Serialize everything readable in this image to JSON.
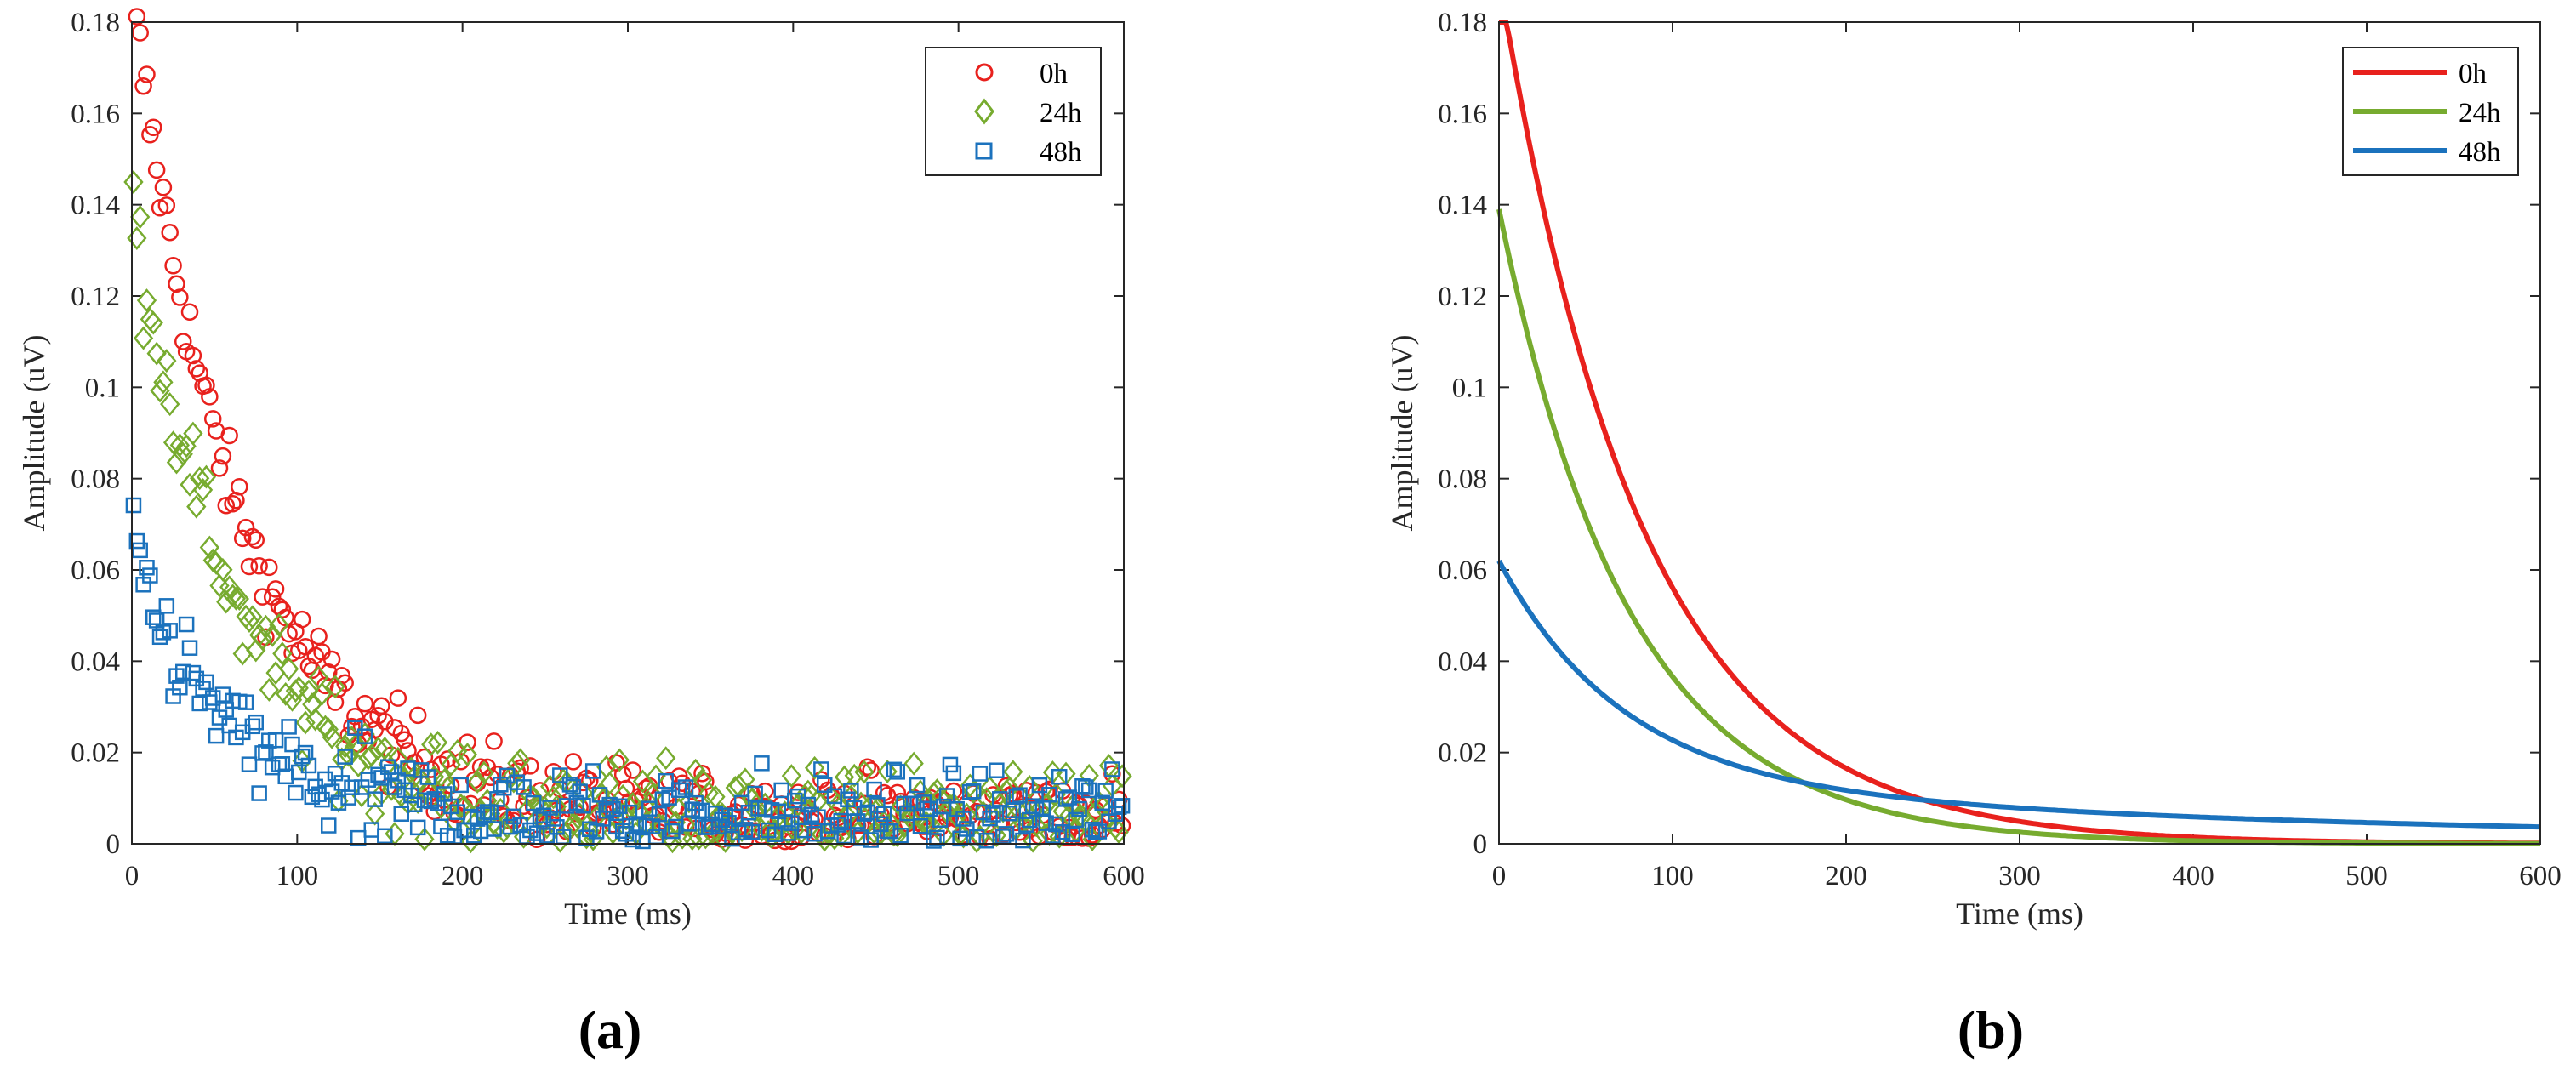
{
  "chart_data": [
    {
      "panel_label": "(a)",
      "type": "scatter",
      "xlabel": "Time (ms)",
      "ylabel": "Amplitude (uV)",
      "xlim": [
        0,
        600
      ],
      "ylim": [
        0,
        0.18
      ],
      "xticks": [
        "0",
        "100",
        "200",
        "300",
        "400",
        "500",
        "600"
      ],
      "yticks": [
        "0",
        "0.02",
        "0.04",
        "0.06",
        "0.08",
        "0.1",
        "0.12",
        "0.14",
        "0.16",
        "0.18"
      ],
      "legend_position": "top-right",
      "sample_step_ms": 2,
      "series": [
        {
          "name": "0h",
          "marker": "circle",
          "color": "#e8211d",
          "model": {
            "a": 0.18,
            "tau": 65
          },
          "noise": 0.008
        },
        {
          "name": "24h",
          "marker": "diamond",
          "color": "#77ab2f",
          "model": {
            "a": 0.135,
            "tau": 60
          },
          "noise": 0.009
        },
        {
          "name": "48h",
          "marker": "square",
          "color": "#1b72bd",
          "model": {
            "a": 0.058,
            "tau": 55
          },
          "noise": 0.009
        }
      ]
    },
    {
      "panel_label": "(b)",
      "type": "line",
      "xlabel": "Time (ms)",
      "ylabel": "Amplitude (uV)",
      "xlim": [
        0,
        600
      ],
      "ylim": [
        0,
        0.18
      ],
      "xticks": [
        "0",
        "100",
        "200",
        "300",
        "400",
        "500",
        "600"
      ],
      "yticks": [
        "0",
        "0.02",
        "0.04",
        "0.06",
        "0.08",
        "0.1",
        "0.12",
        "0.14",
        "0.16",
        "0.18"
      ],
      "legend_position": "top-right",
      "series": [
        {
          "name": "0h",
          "color": "#e8211d",
          "model": {
            "a": 0.19,
            "tau": 82
          }
        },
        {
          "name": "24h",
          "color": "#77ab2f",
          "model": {
            "a": 0.139,
            "tau": 75
          }
        },
        {
          "name": "48h",
          "color": "#1b72bd",
          "model": {
            "a1": 0.048,
            "tau1": 70,
            "a2": 0.014,
            "tau2": 450
          }
        }
      ]
    }
  ]
}
